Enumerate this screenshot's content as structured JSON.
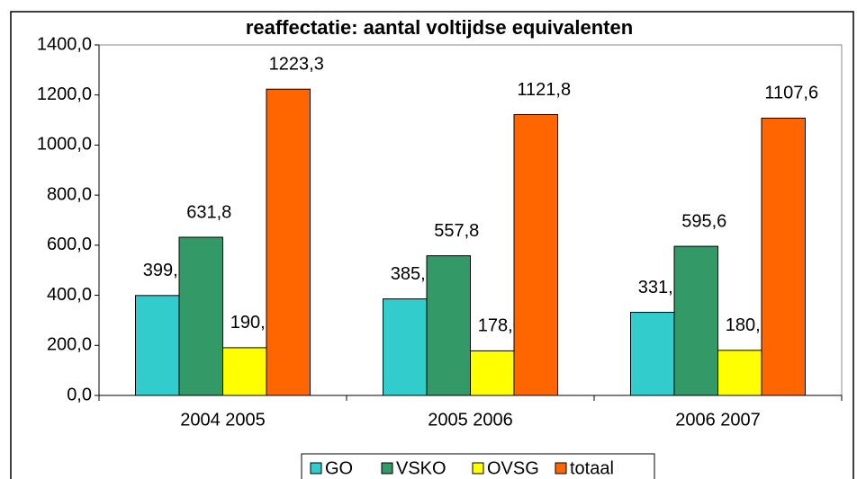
{
  "chart_data": {
    "type": "bar",
    "title": "reaffectatie: aantal voltijdse equivalenten",
    "categories": [
      "2004 2005",
      "2005 2006",
      "2006 2007"
    ],
    "series": [
      {
        "name": "GO",
        "color": "#33CCCC",
        "values": [
          399.1,
          385.5,
          331.9
        ],
        "value_labels": [
          "399,1",
          "385,5",
          "331,9"
        ]
      },
      {
        "name": "VSKO",
        "color": "#339966",
        "values": [
          631.8,
          557.8,
          595.6
        ],
        "value_labels": [
          "631,8",
          "557,8",
          "595,6"
        ]
      },
      {
        "name": "OVSG",
        "color": "#FFFF00",
        "values": [
          190.6,
          178.0,
          180.1
        ],
        "value_labels": [
          "190,6",
          "178,0",
          "180,1"
        ]
      },
      {
        "name": "totaal",
        "color": "#FF6600",
        "values": [
          1223.3,
          1121.8,
          1107.6
        ],
        "value_labels": [
          "1223,3",
          "1121,8",
          "1107,6"
        ]
      }
    ],
    "ylim": [
      0,
      1400
    ],
    "yticks": [
      {
        "value": 0,
        "label": "0,0"
      },
      {
        "value": 200,
        "label": "200,0"
      },
      {
        "value": 400,
        "label": "400,0"
      },
      {
        "value": 600,
        "label": "600,0"
      },
      {
        "value": 800,
        "label": "800,0"
      },
      {
        "value": 1000,
        "label": "1000,0"
      },
      {
        "value": 1200,
        "label": "1200,0"
      },
      {
        "value": 1400,
        "label": "1400,0"
      }
    ],
    "legend": "bottom"
  }
}
